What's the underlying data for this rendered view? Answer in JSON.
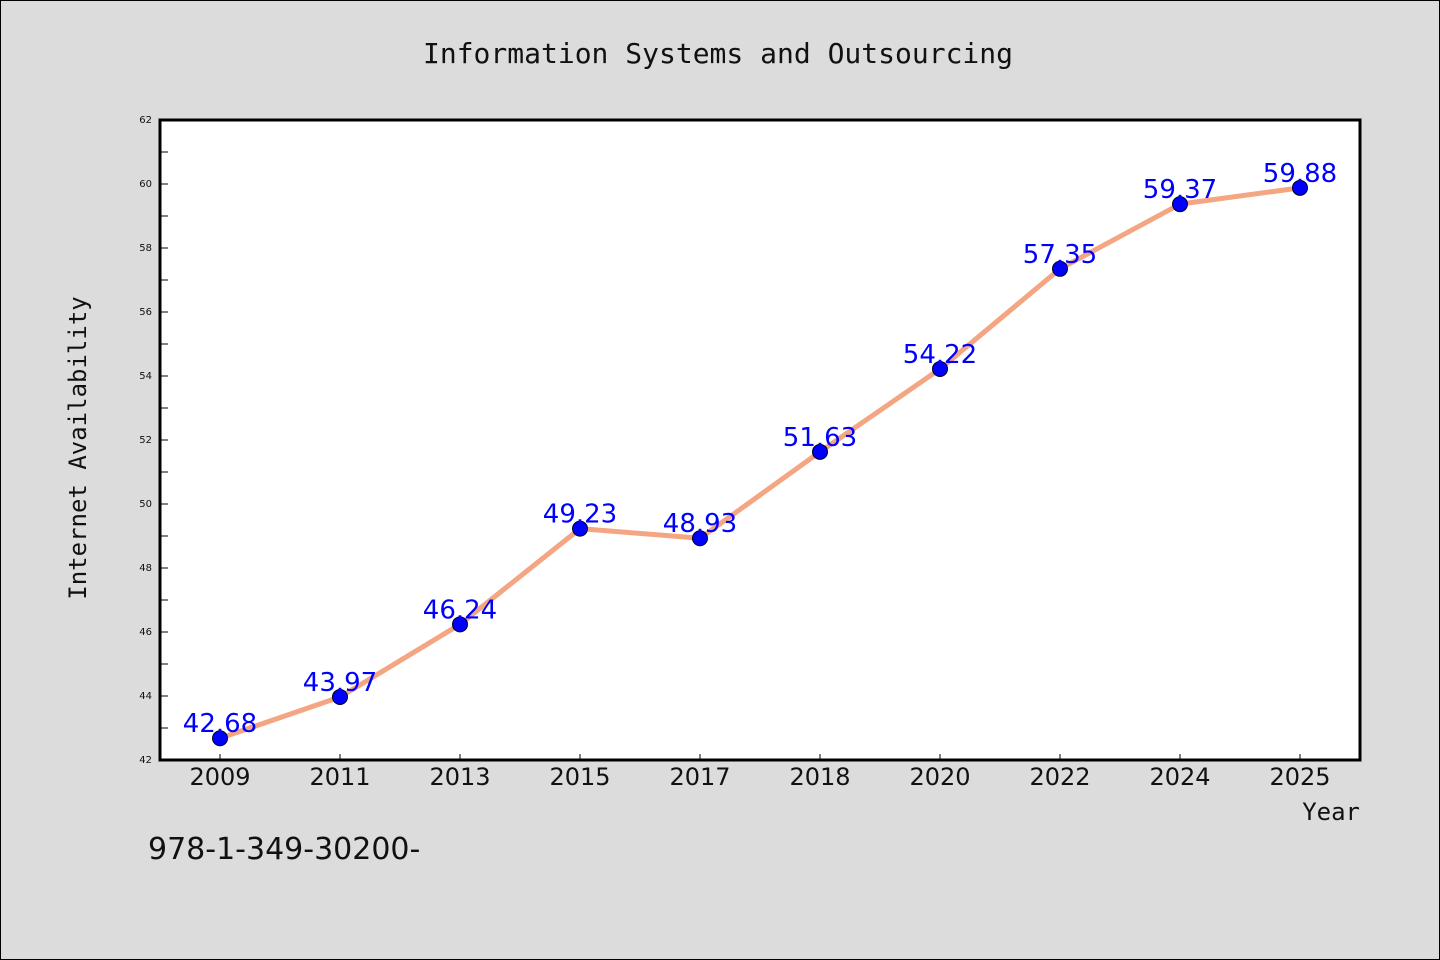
{
  "chart_data": {
    "type": "line",
    "title": "Information Systems and Outsourcing",
    "xlabel": "Year",
    "ylabel": "Internet Availability",
    "categories": [
      "2009",
      "2011",
      "2013",
      "2015",
      "2017",
      "2018",
      "2020",
      "2022",
      "2024",
      "2025"
    ],
    "values": [
      42.68,
      43.97,
      46.24,
      49.23,
      48.93,
      51.63,
      54.22,
      57.35,
      59.37,
      59.88
    ],
    "data_labels": [
      "42.68",
      "43.97",
      "46.24",
      "49.23",
      "48.93",
      "51.63",
      "54.22",
      "57.35",
      "59.37",
      "59.88"
    ],
    "ylim": [
      42,
      62
    ],
    "yticks": [
      42,
      44,
      46,
      48,
      50,
      52,
      54,
      56,
      58,
      60,
      62
    ],
    "grid": false,
    "legend": "none",
    "colors": {
      "line": "#f4a582",
      "marker": "#0000ff",
      "label": "#0000ff"
    }
  },
  "footer": {
    "text": "978-1-349-30200-"
  }
}
